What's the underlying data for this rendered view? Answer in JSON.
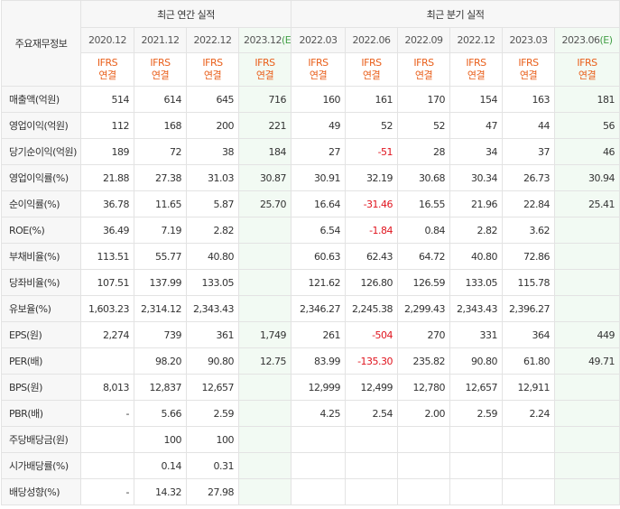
{
  "table": {
    "corner_label": "주요재무정보",
    "groups": {
      "annual": "최근 연간 실적",
      "quarterly": "최근 분기 실적"
    },
    "annual_periods": [
      {
        "label": "2020.12",
        "est": ""
      },
      {
        "label": "2021.12",
        "est": ""
      },
      {
        "label": "2022.12",
        "est": ""
      },
      {
        "label": "2023.12",
        "est": "(E)"
      }
    ],
    "quarter_periods": [
      {
        "label": "2022.03",
        "est": ""
      },
      {
        "label": "2022.06",
        "est": ""
      },
      {
        "label": "2022.09",
        "est": ""
      },
      {
        "label": "2022.12",
        "est": ""
      },
      {
        "label": "2023.03",
        "est": ""
      },
      {
        "label": "2023.06",
        "est": "(E)"
      }
    ],
    "ifrs_line1": "IFRS",
    "ifrs_line2": "연결",
    "rows": [
      {
        "label": "매출액(억원)",
        "values": [
          "514",
          "614",
          "645",
          "716",
          "160",
          "161",
          "170",
          "154",
          "163",
          "181"
        ]
      },
      {
        "label": "영업이익(억원)",
        "values": [
          "112",
          "168",
          "200",
          "221",
          "49",
          "52",
          "52",
          "47",
          "44",
          "56"
        ]
      },
      {
        "label": "당기순이익(억원)",
        "values": [
          "189",
          "72",
          "38",
          "184",
          "27",
          "-51",
          "28",
          "34",
          "37",
          "46"
        ]
      },
      {
        "label": "영업이익률(%)",
        "values": [
          "21.88",
          "27.38",
          "31.03",
          "30.87",
          "30.91",
          "32.19",
          "30.68",
          "30.34",
          "26.73",
          "30.94"
        ]
      },
      {
        "label": "순이익률(%)",
        "values": [
          "36.78",
          "11.65",
          "5.87",
          "25.70",
          "16.64",
          "-31.46",
          "16.55",
          "21.96",
          "22.84",
          "25.41"
        ]
      },
      {
        "label": "ROE(%)",
        "values": [
          "36.49",
          "7.19",
          "2.82",
          "",
          "6.54",
          "-1.84",
          "0.84",
          "2.82",
          "3.62",
          ""
        ]
      },
      {
        "label": "부채비율(%)",
        "values": [
          "113.51",
          "55.77",
          "40.80",
          "",
          "60.63",
          "62.43",
          "64.72",
          "40.80",
          "72.86",
          ""
        ]
      },
      {
        "label": "당좌비율(%)",
        "values": [
          "107.51",
          "137.99",
          "133.05",
          "",
          "121.62",
          "126.80",
          "126.59",
          "133.05",
          "115.78",
          ""
        ]
      },
      {
        "label": "유보율(%)",
        "values": [
          "1,603.23",
          "2,314.12",
          "2,343.43",
          "",
          "2,346.27",
          "2,245.38",
          "2,299.43",
          "2,343.43",
          "2,396.27",
          ""
        ]
      },
      {
        "label": "EPS(원)",
        "values": [
          "2,274",
          "739",
          "361",
          "1,749",
          "261",
          "-504",
          "270",
          "331",
          "364",
          "449"
        ]
      },
      {
        "label": "PER(배)",
        "values": [
          "",
          "98.20",
          "90.80",
          "12.75",
          "83.99",
          "-135.30",
          "235.82",
          "90.80",
          "61.80",
          "49.71"
        ]
      },
      {
        "label": "BPS(원)",
        "values": [
          "8,013",
          "12,837",
          "12,657",
          "",
          "12,999",
          "12,499",
          "12,780",
          "12,657",
          "12,911",
          ""
        ]
      },
      {
        "label": "PBR(배)",
        "values": [
          "-",
          "5.66",
          "2.59",
          "",
          "4.25",
          "2.54",
          "2.00",
          "2.59",
          "2.24",
          ""
        ]
      },
      {
        "label": "주당배당금(원)",
        "values": [
          "",
          "100",
          "100",
          "",
          "",
          "",
          "",
          "",
          "",
          ""
        ]
      },
      {
        "label": "시가배당률(%)",
        "values": [
          "",
          "0.14",
          "0.31",
          "",
          "",
          "",
          "",
          "",
          "",
          ""
        ]
      },
      {
        "label": "배당성향(%)",
        "values": [
          "-",
          "14.32",
          "27.98",
          "",
          "",
          "",
          "",
          "",
          "",
          ""
        ]
      }
    ]
  },
  "colors": {
    "negative": "#e0141e",
    "ifrs": "#e95f1b",
    "estimate_bg": "#f2faf3",
    "estimate_mark": "#43a047"
  }
}
